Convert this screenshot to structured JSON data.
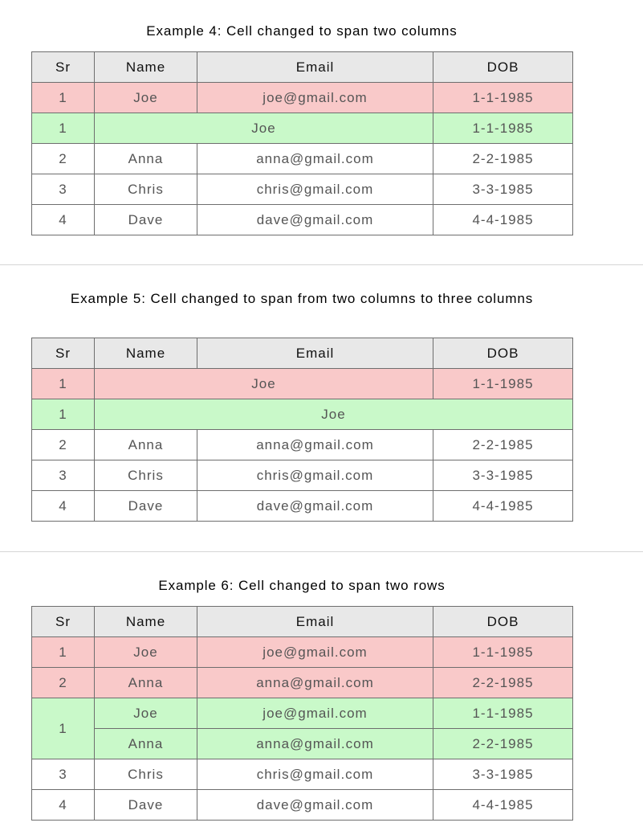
{
  "colors": {
    "header": "#e8e8e8",
    "removed": "#f9c9c9",
    "added": "#c9f9c9"
  },
  "columns": [
    "Sr",
    "Name",
    "Email",
    "DOB"
  ],
  "examples": [
    {
      "title": "Example 4: Cell changed to span two columns",
      "rows": [
        [
          {
            "t": "1",
            "s": "removed"
          },
          {
            "t": "Joe",
            "s": "removed"
          },
          {
            "t": "joe@gmail.com",
            "s": "removed"
          },
          {
            "t": "1-1-1985",
            "s": "removed"
          }
        ],
        [
          {
            "t": "1",
            "s": "added"
          },
          {
            "t": "Joe",
            "s": "added",
            "colspan": 2
          },
          {
            "t": "1-1-1985",
            "s": "added"
          }
        ],
        [
          {
            "t": "2"
          },
          {
            "t": "Anna"
          },
          {
            "t": "anna@gmail.com"
          },
          {
            "t": "2-2-1985"
          }
        ],
        [
          {
            "t": "3"
          },
          {
            "t": "Chris"
          },
          {
            "t": "chris@gmail.com"
          },
          {
            "t": "3-3-1985"
          }
        ],
        [
          {
            "t": "4"
          },
          {
            "t": "Dave"
          },
          {
            "t": "dave@gmail.com"
          },
          {
            "t": "4-4-1985"
          }
        ]
      ]
    },
    {
      "title": "Example 5: Cell changed to span from two columns to three columns",
      "rows": [
        [
          {
            "t": "1",
            "s": "removed"
          },
          {
            "t": "Joe",
            "s": "removed",
            "colspan": 2
          },
          {
            "t": "1-1-1985",
            "s": "removed"
          }
        ],
        [
          {
            "t": "1",
            "s": "added"
          },
          {
            "t": "Joe",
            "s": "added",
            "colspan": 3
          }
        ],
        [
          {
            "t": "2"
          },
          {
            "t": "Anna"
          },
          {
            "t": "anna@gmail.com"
          },
          {
            "t": "2-2-1985"
          }
        ],
        [
          {
            "t": "3"
          },
          {
            "t": "Chris"
          },
          {
            "t": "chris@gmail.com"
          },
          {
            "t": "3-3-1985"
          }
        ],
        [
          {
            "t": "4"
          },
          {
            "t": "Dave"
          },
          {
            "t": "dave@gmail.com"
          },
          {
            "t": "4-4-1985"
          }
        ]
      ]
    },
    {
      "title": "Example 6: Cell changed to span two rows",
      "rows": [
        [
          {
            "t": "1",
            "s": "removed"
          },
          {
            "t": "Joe",
            "s": "removed"
          },
          {
            "t": "joe@gmail.com",
            "s": "removed"
          },
          {
            "t": "1-1-1985",
            "s": "removed"
          }
        ],
        [
          {
            "t": "2",
            "s": "removed"
          },
          {
            "t": "Anna",
            "s": "removed"
          },
          {
            "t": "anna@gmail.com",
            "s": "removed"
          },
          {
            "t": "2-2-1985",
            "s": "removed"
          }
        ],
        [
          {
            "t": "1",
            "s": "added",
            "rowspan": 2
          },
          {
            "t": "Joe",
            "s": "added"
          },
          {
            "t": "joe@gmail.com",
            "s": "added"
          },
          {
            "t": "1-1-1985",
            "s": "added"
          }
        ],
        [
          {
            "t": "Anna",
            "s": "added"
          },
          {
            "t": "anna@gmail.com",
            "s": "added"
          },
          {
            "t": "2-2-1985",
            "s": "added"
          }
        ],
        [
          {
            "t": "3"
          },
          {
            "t": "Chris"
          },
          {
            "t": "chris@gmail.com"
          },
          {
            "t": "3-3-1985"
          }
        ],
        [
          {
            "t": "4"
          },
          {
            "t": "Dave"
          },
          {
            "t": "dave@gmail.com"
          },
          {
            "t": "4-4-1985"
          }
        ]
      ]
    }
  ]
}
